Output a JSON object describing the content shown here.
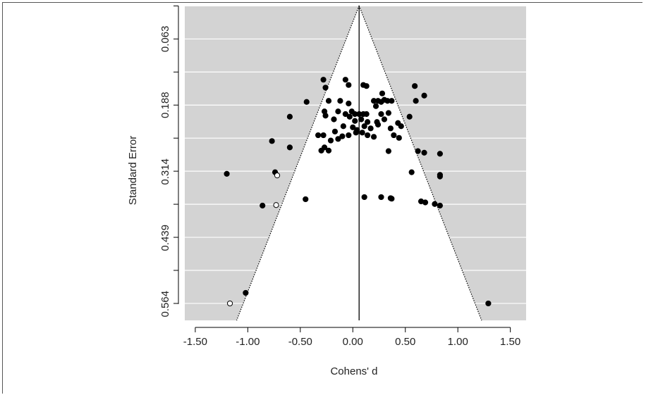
{
  "chart_data": {
    "type": "scatter",
    "title": "",
    "xlabel": "Cohens' d",
    "ylabel": "Standard Error",
    "xlim": [
      -1.6,
      1.65
    ],
    "ylim": [
      0.595,
      0.0
    ],
    "x_ticks": [
      -1.5,
      -1.0,
      -0.5,
      0.0,
      0.5,
      1.0,
      1.5
    ],
    "x_tick_labels": [
      "-1.50",
      "-1.00",
      "-0.50",
      "0.00",
      "0.50",
      "1.00",
      "1.50"
    ],
    "y_ticks": [
      0.063,
      0.188,
      0.314,
      0.439,
      0.564
    ],
    "y_tick_labels": [
      "0.063",
      "0.188",
      "0.314",
      "0.439",
      "0.564"
    ],
    "y_reversed": true,
    "grid": true,
    "background": "#d3d3d3",
    "funnel": {
      "center": 0.06,
      "apex_se": 0.0,
      "z": 1.96,
      "se_max": 0.595
    },
    "series": [
      {
        "fill": "#000000",
        "points": [
          [
            -0.28,
            0.14
          ],
          [
            -0.26,
            0.155
          ],
          [
            -0.07,
            0.14
          ],
          [
            -0.04,
            0.15
          ],
          [
            0.1,
            0.15
          ],
          [
            0.13,
            0.152
          ],
          [
            0.59,
            0.152
          ],
          [
            0.68,
            0.17
          ],
          [
            0.6,
            0.18
          ],
          [
            0.28,
            0.166
          ],
          [
            -0.44,
            0.182
          ],
          [
            -0.23,
            0.18
          ],
          [
            -0.12,
            0.18
          ],
          [
            -0.04,
            0.185
          ],
          [
            0.2,
            0.18
          ],
          [
            0.24,
            0.18
          ],
          [
            0.3,
            0.178
          ],
          [
            0.33,
            0.18
          ],
          [
            0.37,
            0.18
          ],
          [
            0.27,
            0.182
          ],
          [
            0.22,
            0.19
          ],
          [
            -0.27,
            0.2
          ],
          [
            -0.26,
            0.208
          ],
          [
            -0.14,
            0.2
          ],
          [
            -0.07,
            0.205
          ],
          [
            -0.01,
            0.2
          ],
          [
            0.02,
            0.205
          ],
          [
            0.06,
            0.205
          ],
          [
            0.1,
            0.205
          ],
          [
            0.13,
            0.205
          ],
          [
            0.27,
            0.205
          ],
          [
            0.34,
            0.203
          ],
          [
            -0.6,
            0.21
          ],
          [
            -0.18,
            0.215
          ],
          [
            -0.03,
            0.21
          ],
          [
            0.02,
            0.218
          ],
          [
            0.08,
            0.215
          ],
          [
            0.14,
            0.22
          ],
          [
            0.23,
            0.22
          ],
          [
            0.3,
            0.215
          ],
          [
            0.54,
            0.21
          ],
          [
            -0.09,
            0.228
          ],
          [
            0.0,
            0.23
          ],
          [
            0.04,
            0.235
          ],
          [
            0.11,
            0.228
          ],
          [
            0.17,
            0.232
          ],
          [
            0.24,
            0.225
          ],
          [
            0.36,
            0.232
          ],
          [
            0.43,
            0.222
          ],
          [
            0.46,
            0.228
          ],
          [
            -0.17,
            0.238
          ],
          [
            -0.33,
            0.245
          ],
          [
            -0.28,
            0.245
          ],
          [
            -0.14,
            0.252
          ],
          [
            -0.1,
            0.247
          ],
          [
            -0.04,
            0.245
          ],
          [
            0.03,
            0.24
          ],
          [
            0.09,
            0.24
          ],
          [
            0.14,
            0.245
          ],
          [
            0.2,
            0.248
          ],
          [
            0.39,
            0.245
          ],
          [
            0.44,
            0.25
          ],
          [
            -0.21,
            0.255
          ],
          [
            -0.77,
            0.256
          ],
          [
            -0.27,
            0.268
          ],
          [
            -0.23,
            0.274
          ],
          [
            -0.3,
            0.274
          ],
          [
            -0.6,
            0.268
          ],
          [
            0.34,
            0.275
          ],
          [
            0.62,
            0.275
          ],
          [
            0.68,
            0.278
          ],
          [
            0.83,
            0.28
          ],
          [
            -1.2,
            0.318
          ],
          [
            -0.74,
            0.315
          ],
          [
            0.56,
            0.315
          ],
          [
            0.83,
            0.32
          ],
          [
            0.83,
            0.323
          ],
          [
            -0.45,
            0.366
          ],
          [
            0.11,
            0.362
          ],
          [
            0.27,
            0.362
          ],
          [
            0.36,
            0.364
          ],
          [
            0.37,
            0.365
          ],
          [
            0.65,
            0.37
          ],
          [
            0.69,
            0.372
          ],
          [
            0.78,
            0.375
          ],
          [
            0.83,
            0.378
          ],
          [
            -0.86,
            0.378
          ],
          [
            -1.02,
            0.543
          ],
          [
            1.29,
            0.563
          ]
        ]
      },
      {
        "fill": "#ffffff",
        "points": [
          [
            -0.72,
            0.321
          ],
          [
            -0.73,
            0.377
          ],
          [
            -1.17,
            0.563
          ]
        ]
      }
    ]
  }
}
